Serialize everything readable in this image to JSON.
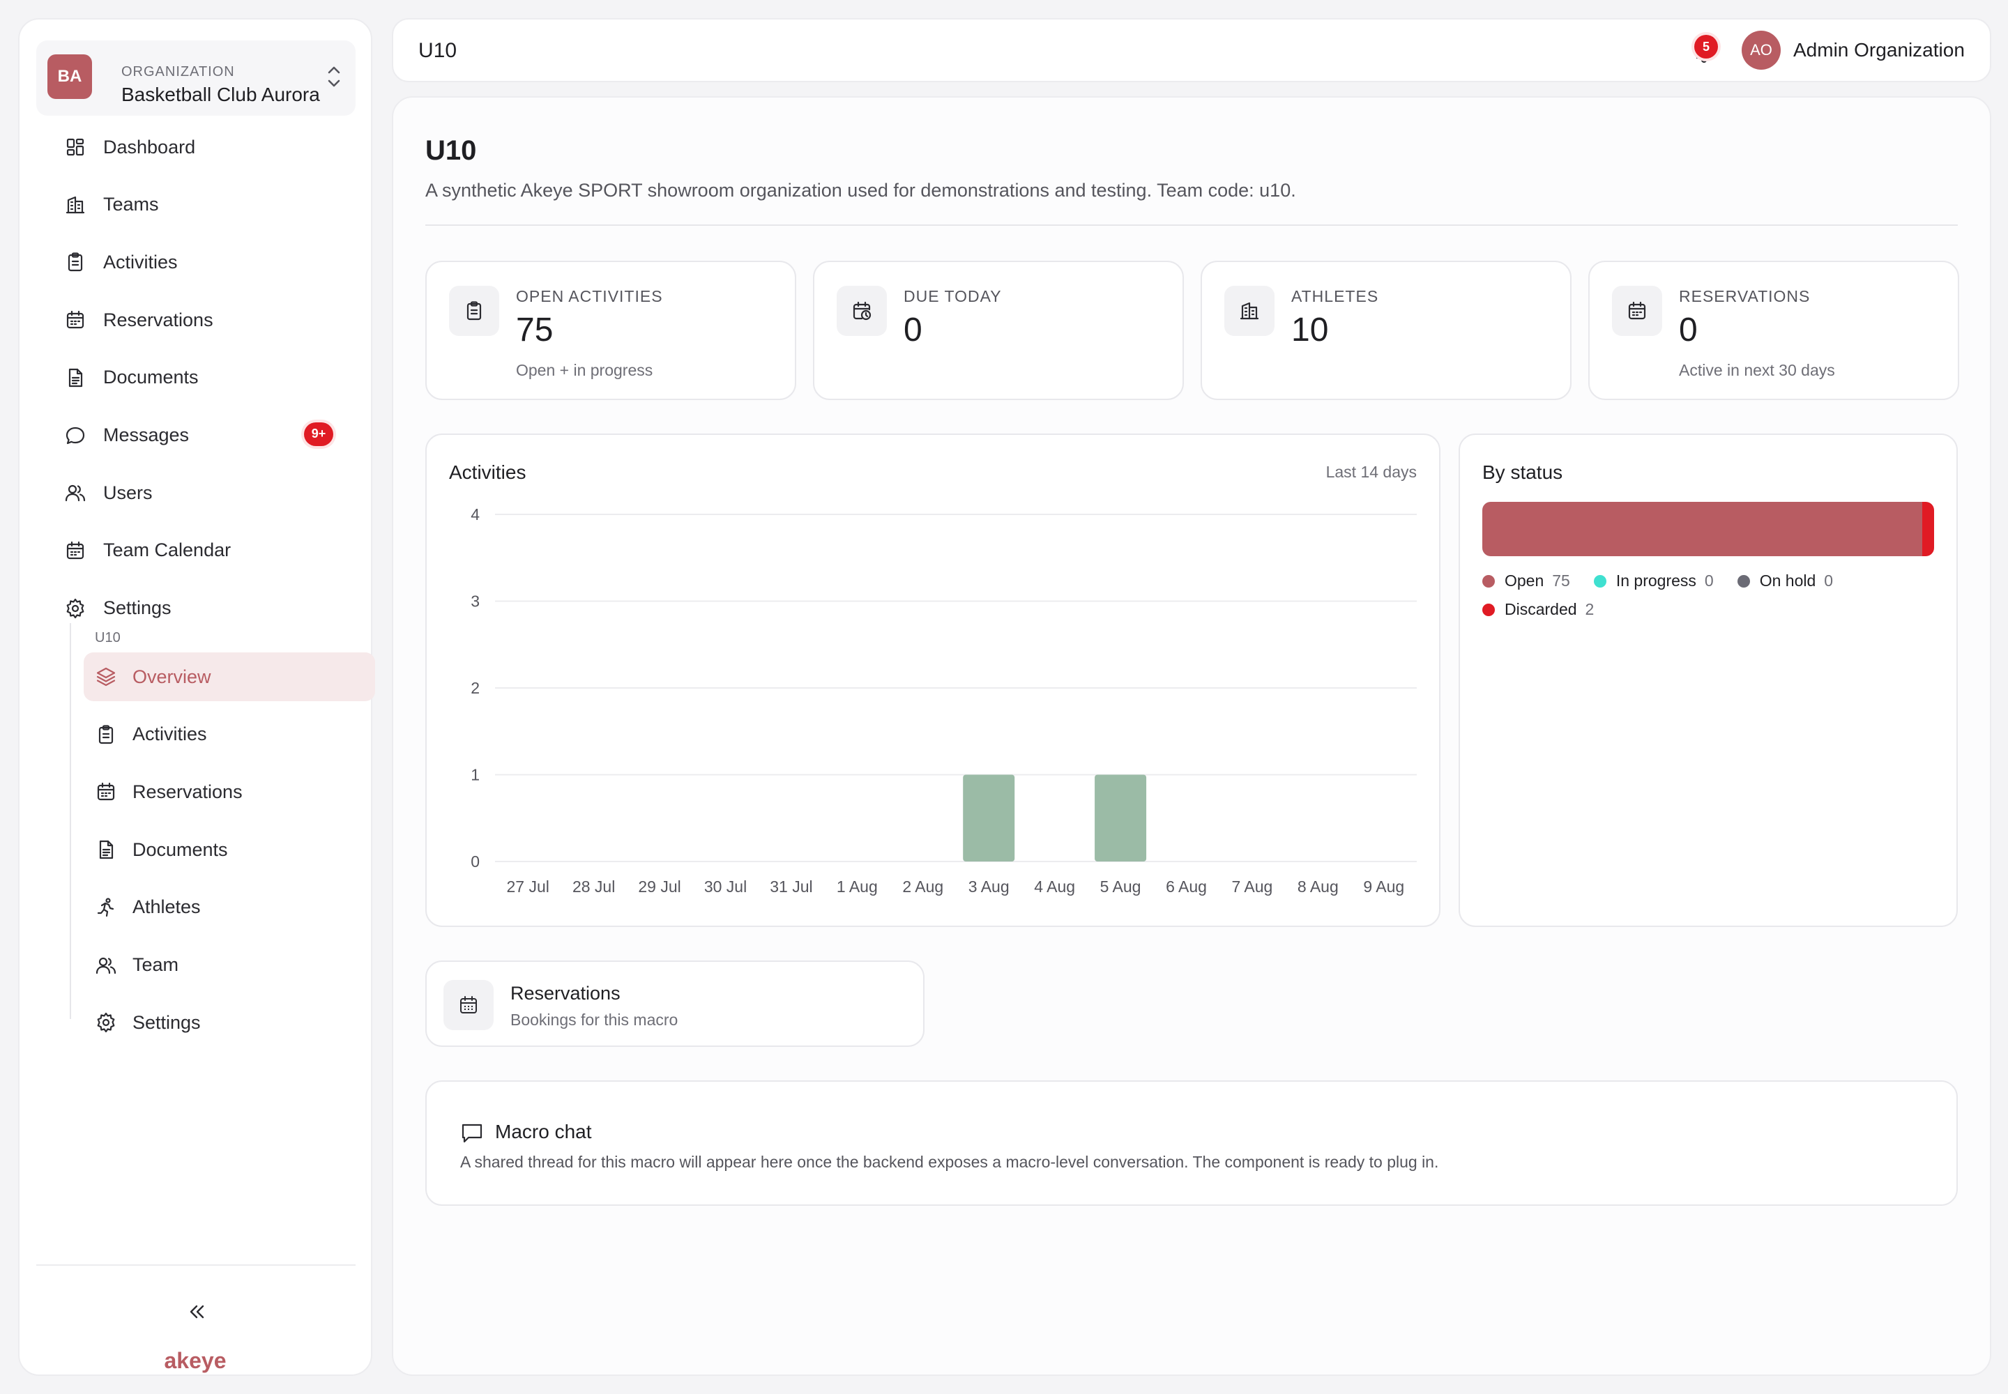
{
  "sidebar": {
    "org": {
      "initials": "BA",
      "kicker": "ORGANIZATION",
      "name": "Basketball Club Aurora"
    },
    "nav": [
      {
        "label": "Dashboard",
        "icon": "dashboard-icon"
      },
      {
        "label": "Teams",
        "icon": "building-icon"
      },
      {
        "label": "Activities",
        "icon": "clipboard-icon"
      },
      {
        "label": "Reservations",
        "icon": "calendar-icon"
      },
      {
        "label": "Documents",
        "icon": "document-icon"
      },
      {
        "label": "Messages",
        "icon": "chat-icon",
        "badge": "9+"
      },
      {
        "label": "Users",
        "icon": "users-icon"
      },
      {
        "label": "Team Calendar",
        "icon": "calendar-icon"
      },
      {
        "label": "Settings",
        "icon": "gear-icon"
      }
    ],
    "sub_title": "U10",
    "sub_nav": [
      {
        "label": "Overview",
        "icon": "layers-icon",
        "active": true
      },
      {
        "label": "Activities",
        "icon": "clipboard-icon"
      },
      {
        "label": "Reservations",
        "icon": "calendar-icon"
      },
      {
        "label": "Documents",
        "icon": "document-icon"
      },
      {
        "label": "Athletes",
        "icon": "running-icon"
      },
      {
        "label": "Team",
        "icon": "users-icon"
      },
      {
        "label": "Settings",
        "icon": "gear-icon"
      }
    ],
    "collapse_label": "«",
    "brand": "akeye"
  },
  "topbar": {
    "title": "U10",
    "notifications": "5",
    "user_initials": "AO",
    "user_name": "Admin Organization"
  },
  "main": {
    "title": "U10",
    "description": "A synthetic Akeye SPORT showroom organization used for demonstrations and testing. Team code: u10.",
    "stats": [
      {
        "label": "OPEN ACTIVITIES",
        "value": "75",
        "sub": "Open + in progress",
        "icon": "clipboard-icon"
      },
      {
        "label": "DUE TODAY",
        "value": "0",
        "sub": "",
        "icon": "calendar-clock-icon"
      },
      {
        "label": "ATHLETES",
        "value": "10",
        "sub": "",
        "icon": "building-icon"
      },
      {
        "label": "RESERVATIONS",
        "value": "0",
        "sub": "Active in next 30 days",
        "icon": "calendar-icon"
      }
    ],
    "activities_card": {
      "title": "Activities",
      "range": "Last 14 days"
    },
    "status_card": {
      "title": "By status",
      "items": [
        {
          "label": "Open",
          "count": 75,
          "color": "#b85c62"
        },
        {
          "label": "In progress",
          "count": 0,
          "color": "#3fe0d0"
        },
        {
          "label": "On hold",
          "count": 0,
          "color": "#6b6b75"
        },
        {
          "label": "Discarded",
          "count": 2,
          "color": "#e01b24"
        }
      ]
    },
    "reservations_card": {
      "title": "Reservations",
      "sub": "Bookings for this macro"
    },
    "chat_card": {
      "title": "Macro chat",
      "desc": "A shared thread for this macro will appear here once the backend exposes a macro-level conversation. The component is ready to plug in."
    }
  },
  "chart_data": {
    "type": "bar",
    "categories": [
      "27 Jul",
      "28 Jul",
      "29 Jul",
      "30 Jul",
      "31 Jul",
      "1 Aug",
      "2 Aug",
      "3 Aug",
      "4 Aug",
      "5 Aug",
      "6 Aug",
      "7 Aug",
      "8 Aug",
      "9 Aug"
    ],
    "values": [
      0,
      0,
      0,
      0,
      0,
      0,
      0,
      1,
      0,
      1,
      0,
      0,
      0,
      0
    ],
    "ylim": [
      0,
      4
    ],
    "yticks": [
      0,
      1,
      2,
      3,
      4
    ],
    "grid": true,
    "bar_color": "#9bbba6"
  }
}
